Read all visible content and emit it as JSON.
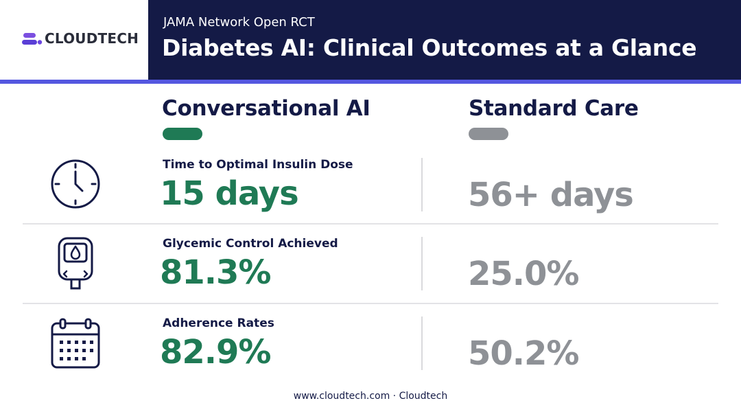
{
  "brand": {
    "logo_text": "CLOUDTECH",
    "logo_icon": "cloudtech-logo-icon"
  },
  "header": {
    "subtitle": "JAMA Network Open RCT",
    "title": "Diabetes AI: Clinical Outcomes at a Glance"
  },
  "columns": {
    "ai_label": "Conversational AI",
    "std_label": "Standard Care"
  },
  "metrics": [
    {
      "icon": "clock-icon",
      "label": "Time to Optimal Insulin Dose",
      "ai_value": "15 days",
      "std_value": "56+ days"
    },
    {
      "icon": "glucose-meter-icon",
      "label": "Glycemic Control Achieved",
      "ai_value": "81.3%",
      "std_value": "25.0%"
    },
    {
      "icon": "calendar-icon",
      "label": "Adherence Rates",
      "ai_value": "82.9%",
      "std_value": "50.2%"
    }
  ],
  "footer": {
    "text": "www.cloudtech.com · Cloudtech"
  },
  "colors": {
    "navy": "#141a46",
    "accent": "#5457e0",
    "ai_green": "#1f7a55",
    "std_gray": "#8e9196"
  }
}
